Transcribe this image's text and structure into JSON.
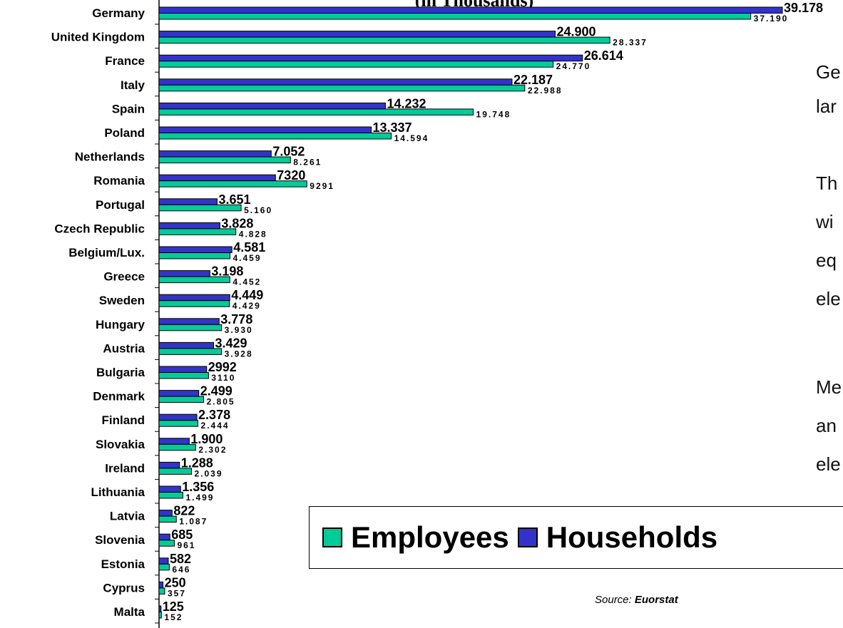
{
  "chart_data": {
    "type": "bar",
    "orientation": "horizontal",
    "title": "(in Thousands)",
    "categories": [
      "Germany",
      "United Kingdom",
      "France",
      "Italy",
      "Spain",
      "Poland",
      "Netherlands",
      "Romania",
      "Portugal",
      "Czech Republic",
      "Belgium/Lux.",
      "Greece",
      "Sweden",
      "Hungary",
      "Austria",
      "Bulgaria",
      "Denmark",
      "Finland",
      "Slovakia",
      "Ireland",
      "Lithuania",
      "Latvia",
      "Slovenia",
      "Estonia",
      "Cyprus",
      "Malta"
    ],
    "series": [
      {
        "name": "Households",
        "color": "#3333CC",
        "values": [
          39178,
          24900,
          26614,
          22187,
          14232,
          13337,
          7052,
          7320,
          3651,
          3828,
          4581,
          3198,
          4449,
          3778,
          3429,
          2992,
          2499,
          2378,
          1900,
          1288,
          1356,
          822,
          685,
          582,
          250,
          125
        ],
        "labels": [
          "39.178",
          "24.900",
          "26.614",
          "22.187",
          "14.232",
          "13.337",
          "7.052",
          "7320",
          "3.651",
          "3.828",
          "4.581",
          "3.198",
          "4.449",
          "3.778",
          "3.429",
          "2992",
          "2.499",
          "2.378",
          "1.900",
          "1.288",
          "1.356",
          "822",
          "685",
          "582",
          "250",
          "125"
        ]
      },
      {
        "name": "Employees",
        "color": "#00CC99",
        "values": [
          37190,
          28337,
          24770,
          22988,
          19748,
          14594,
          8261,
          9291,
          5160,
          4828,
          4459,
          4452,
          4429,
          3930,
          3928,
          3110,
          2805,
          2444,
          2302,
          2039,
          1499,
          1087,
          961,
          646,
          357,
          152
        ],
        "labels": [
          "37.190",
          "28.337",
          "24.770",
          "22.988",
          "19.748",
          "14.594",
          "8.261",
          "9291",
          "5.160",
          "4.828",
          "4.459",
          "4.452",
          "4.429",
          "3.930",
          "3.928",
          "3110",
          "2.805",
          "2.444",
          "2.302",
          "2.039",
          "1.499",
          "1.087",
          "961",
          "646",
          "357",
          "152"
        ]
      }
    ],
    "xlim": [
      0,
      39178
    ],
    "grid": false,
    "legend_position": "bottom-right"
  },
  "legend": {
    "employees": "Employees",
    "households": "Households"
  },
  "source": {
    "prefix": "Source: ",
    "name": "Euorstat"
  },
  "side_text": [
    "Ge",
    "lar",
    "Th",
    "wi",
    "eq",
    "ele",
    "Me",
    "an",
    "ele"
  ]
}
